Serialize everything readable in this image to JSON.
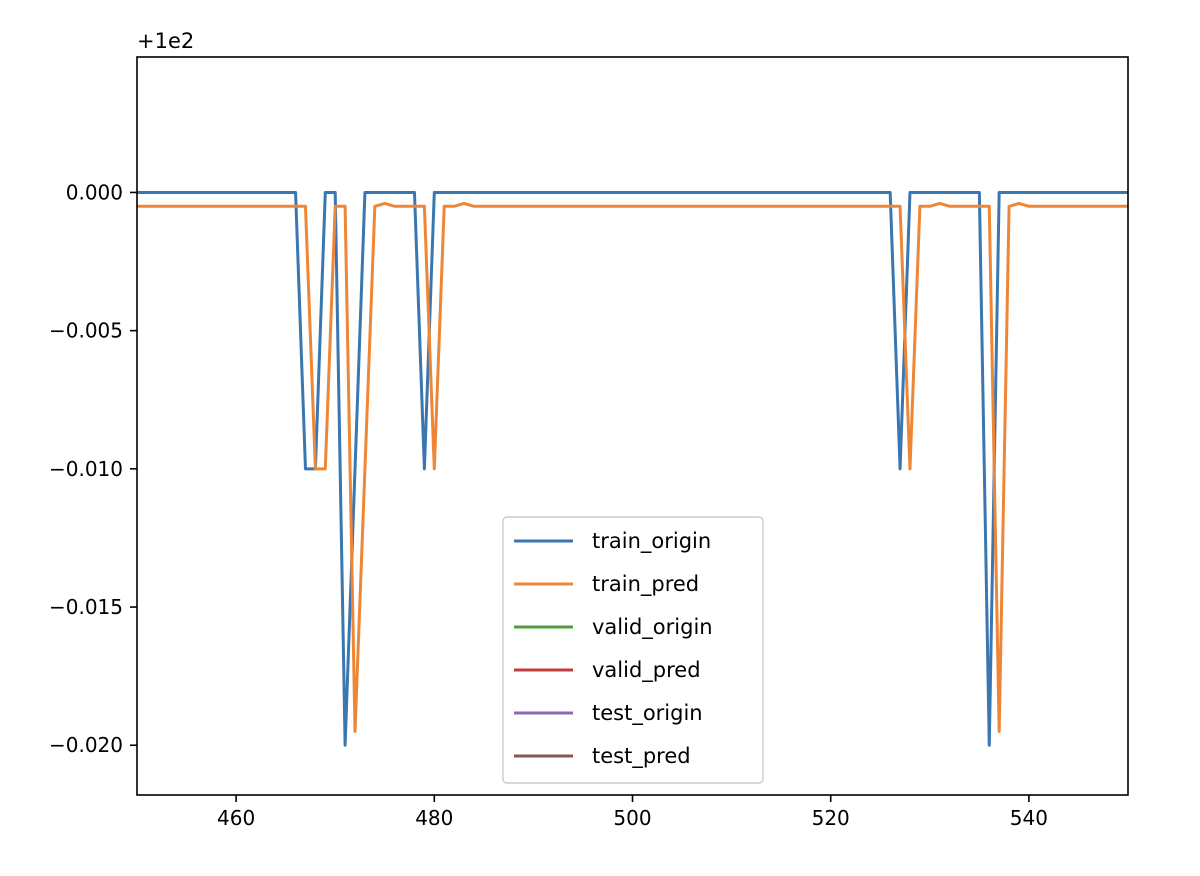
{
  "chart_data": {
    "type": "line",
    "title": "",
    "xlabel": "",
    "ylabel": "",
    "offset_label": "+1e2",
    "xlim": [
      450,
      550
    ],
    "ylim": [
      -0.0218,
      0.0049
    ],
    "x_ticks": [
      460,
      480,
      500,
      520,
      540
    ],
    "x_tick_labels": [
      "460",
      "480",
      "500",
      "520",
      "540"
    ],
    "y_ticks": [
      0.0,
      -0.005,
      -0.01,
      -0.015,
      -0.02
    ],
    "y_tick_labels": [
      "0.000",
      "−0.005",
      "−0.010",
      "−0.015",
      "−0.020"
    ],
    "grid": false,
    "legend_position": "lower-center",
    "series": [
      {
        "name": "train_origin",
        "color": "#3a76af",
        "x": [
          450,
          466,
          467,
          468,
          469,
          470,
          471,
          472,
          473,
          474,
          475,
          476,
          477,
          478,
          479,
          480,
          481,
          482,
          483,
          526,
          527,
          528,
          529,
          530,
          531,
          532,
          533,
          534,
          535,
          536,
          537,
          538,
          539,
          540,
          550
        ],
        "y": [
          0.0,
          0.0,
          -0.01,
          -0.01,
          0.0,
          0.0,
          -0.02,
          -0.01,
          0.0,
          0.0,
          0.0,
          0.0,
          0.0,
          0.0,
          -0.01,
          0.0,
          0.0,
          0.0,
          0.0,
          0.0,
          -0.01,
          0.0,
          0.0,
          0.0,
          0.0,
          0.0,
          0.0,
          0.0,
          0.0,
          -0.02,
          0.0,
          0.0,
          0.0,
          0.0,
          0.0
        ]
      },
      {
        "name": "train_pred",
        "color": "#ef8636",
        "x": [
          450,
          467,
          468,
          469,
          470,
          471,
          472,
          473,
          474,
          475,
          476,
          477,
          478,
          479,
          480,
          481,
          482,
          483,
          484,
          527,
          528,
          529,
          530,
          531,
          532,
          533,
          534,
          535,
          536,
          537,
          538,
          539,
          540,
          541,
          550
        ],
        "y": [
          -0.0005,
          -0.0005,
          -0.01,
          -0.01,
          -0.0005,
          -0.0005,
          -0.0195,
          -0.01,
          -0.0005,
          -0.0004,
          -0.0005,
          -0.0005,
          -0.0005,
          -0.0005,
          -0.01,
          -0.0005,
          -0.0005,
          -0.0004,
          -0.0005,
          -0.0005,
          -0.01,
          -0.0005,
          -0.0005,
          -0.0004,
          -0.0005,
          -0.0005,
          -0.0005,
          -0.0005,
          -0.0005,
          -0.0195,
          -0.0005,
          -0.0004,
          -0.0005,
          -0.0005,
          -0.0005
        ]
      },
      {
        "name": "valid_origin",
        "color": "#519e3e",
        "x": [],
        "y": []
      },
      {
        "name": "valid_pred",
        "color": "#c03d3e",
        "x": [],
        "y": []
      },
      {
        "name": "test_origin",
        "color": "#8d69b8",
        "x": [],
        "y": []
      },
      {
        "name": "test_pred",
        "color": "#84584e",
        "x": [],
        "y": []
      }
    ]
  }
}
